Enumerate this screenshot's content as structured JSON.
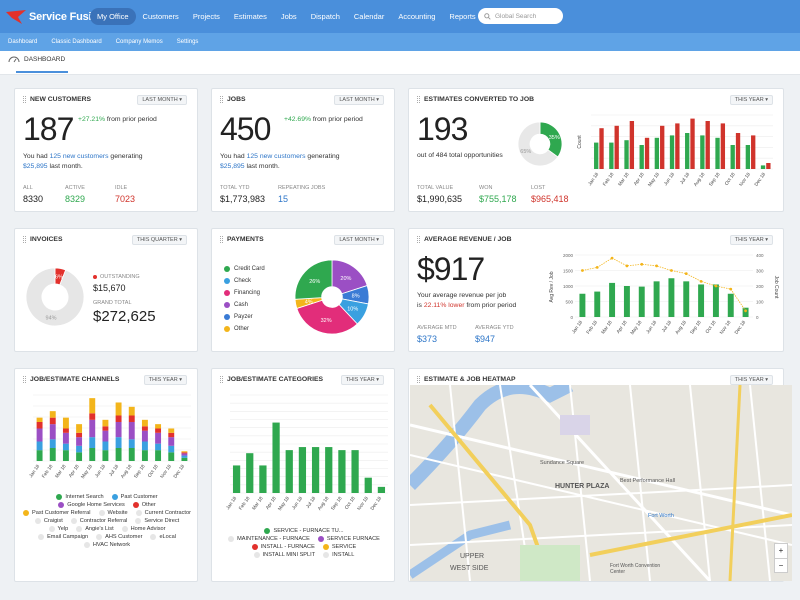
{
  "brand": {
    "name": "Service Fusion"
  },
  "nav": {
    "items": [
      "My Office",
      "Customers",
      "Projects",
      "Estimates",
      "Jobs",
      "Dispatch",
      "Calendar",
      "Accounting",
      "Reports"
    ],
    "active": "My Office"
  },
  "search": {
    "placeholder": "Global Search"
  },
  "subnav": {
    "items": [
      "Dashboard",
      "Classic Dashboard",
      "Company Memos",
      "Settings"
    ]
  },
  "breadcrumb": {
    "label": "DASHBOARD"
  },
  "new_customers": {
    "title": "NEW CUSTOMERS",
    "period": "LAST MONTH",
    "value": "187",
    "change": "+27.21%",
    "change_suffix": "from prior period",
    "line1_a": "You had ",
    "line1_b": "125 new customers",
    "line1_c": " generating",
    "line2_a": "$25,895",
    "line2_b": " last month.",
    "all_label": "ALL",
    "all_value": "8330",
    "active_label": "ACTIVE",
    "active_value": "8329",
    "idle_label": "IDLE",
    "idle_value": "7023"
  },
  "jobs": {
    "title": "JOBS",
    "period": "LAST MONTH",
    "value": "450",
    "change": "+42.69%",
    "change_suffix": "from prior period",
    "line1_a": "You had ",
    "line1_b": "125 new customers",
    "line1_c": " generating",
    "line2_a": "$25,895",
    "line2_b": " last month.",
    "ytd_label": "TOTAL YTD",
    "ytd_value": "$1,773,983",
    "rep_label": "REPEATING JOBS",
    "rep_value": "15"
  },
  "estimates": {
    "title": "ESTIMATES CONVERTED TO JOB",
    "period": "THIS YEAR",
    "value": "193",
    "sub": "out of 484 total opportunities",
    "total_label": "TOTAL VALUE",
    "total_value": "$1,990,635",
    "won_label": "WON",
    "won_value": "$755,178",
    "lost_label": "LOST",
    "lost_value": "$965,418",
    "pie_won": "35%",
    "pie_rest": "65%",
    "y_label": "Count"
  },
  "invoices": {
    "title": "INVOICES",
    "period": "THIS QUARTER",
    "pie_out": "6%",
    "pie_rest": "94%",
    "out_label": "OUTSTANDING",
    "out_value": "$15,670",
    "grand_label": "GRAND TOTAL",
    "grand_value": "$272,625"
  },
  "payments": {
    "title": "PAYMENTS",
    "period": "LAST MONTH",
    "legend": [
      {
        "label": "Credit Card",
        "color": "#2fa84f"
      },
      {
        "label": "Check",
        "color": "#3aa0e0"
      },
      {
        "label": "Financing",
        "color": "#e22d7a"
      },
      {
        "label": "Cash",
        "color": "#9b4fc4"
      },
      {
        "label": "Payzer",
        "color": "#3a7bd5"
      },
      {
        "label": "Other",
        "color": "#f3b51b"
      }
    ]
  },
  "avg_revenue": {
    "title": "AVERAGE REVENUE / JOB",
    "period": "THIS YEAR",
    "value": "$917",
    "line1": "Your average revenue per job",
    "line2_a": "is ",
    "line2_b": "22.11% lower",
    "line2_c": " from prior period",
    "mtd_label": "AVERAGE MTD",
    "mtd_value": "$373",
    "ytd_label": "AVERAGE YTD",
    "ytd_value": "$947",
    "y_left": "Avg Rev / Job",
    "y_right": "Job Count"
  },
  "channels": {
    "title": "JOB/ESTIMATE CHANNELS",
    "period": "THIS YEAR",
    "legend": [
      {
        "label": "Internet Search",
        "color": "#2fa84f"
      },
      {
        "label": "Past Customer",
        "color": "#3aa0e0"
      },
      {
        "label": "Google Home Services",
        "color": "#9b4fc4"
      },
      {
        "label": "Other",
        "color": "#e2312c"
      },
      {
        "label": "Past Customer Referral",
        "color": "#f3b51b"
      },
      {
        "label": "Website",
        "color": "#e6e6e6"
      },
      {
        "label": "Current Contractor",
        "color": "#e6e6e6"
      },
      {
        "label": "Craigist",
        "color": "#e6e6e6"
      },
      {
        "label": "Contractor Referral",
        "color": "#e6e6e6"
      },
      {
        "label": "Service Direct",
        "color": "#e6e6e6"
      },
      {
        "label": "Yelp",
        "color": "#e6e6e6"
      },
      {
        "label": "Angie's List",
        "color": "#e6e6e6"
      },
      {
        "label": "Home Advisor",
        "color": "#e6e6e6"
      },
      {
        "label": "Email Campaign",
        "color": "#e6e6e6"
      },
      {
        "label": "AHS Customer",
        "color": "#e6e6e6"
      },
      {
        "label": "eLocal",
        "color": "#e6e6e6"
      },
      {
        "label": "HVAC Network",
        "color": "#e6e6e6"
      }
    ]
  },
  "categories": {
    "title": "JOB/ESTIMATE CATEGORIES",
    "period": "THIS YEAR",
    "legend": [
      {
        "label": "SERVICE - FURNACE TU...",
        "color": "#2fa84f"
      },
      {
        "label": "MAINTENANCE - FURNACE",
        "color": "#e6e6e6"
      },
      {
        "label": "SERVICE FURNACE",
        "color": "#9b4fc4"
      },
      {
        "label": "INSTALL - FURNACE",
        "color": "#e2312c"
      },
      {
        "label": "SERVICE",
        "color": "#f3b51b"
      },
      {
        "label": "INSTALL MINI SPLIT",
        "color": "#e6e6e6"
      },
      {
        "label": "INSTALL",
        "color": "#e6e6e6"
      }
    ]
  },
  "heatmap": {
    "title": "ESTIMATE & JOB HEATMAP",
    "period": "THIS YEAR",
    "places": [
      "HUNTER PLAZA",
      "UPPER",
      "WEST SIDE",
      "Sundance Square",
      "Fort Worth",
      "Best Performance Hall",
      "Fort Worth Convention Center"
    ],
    "zoom_in": "+",
    "zoom_out": "−"
  },
  "chart_data": [
    {
      "type": "bar",
      "title": "",
      "ylabel": "Count",
      "categories": [
        "Jan 18",
        "Feb 18",
        "Mar 18",
        "Apr 18",
        "May 18",
        "Jun 18",
        "Jul 18",
        "Aug 18",
        "Sep 18",
        "Oct 18",
        "Nov 18",
        "Dec 18"
      ],
      "series": [
        {
          "color": "#2fa84f",
          "values": [
            22,
            22,
            24,
            20,
            26,
            28,
            30,
            28,
            26,
            20,
            20,
            3
          ]
        },
        {
          "color": "#d0342c",
          "values": [
            34,
            36,
            40,
            26,
            36,
            38,
            42,
            40,
            38,
            30,
            28,
            5
          ]
        }
      ],
      "ylim": [
        0,
        45
      ]
    },
    {
      "type": "pie",
      "title": "",
      "slices": [
        {
          "label": "35%",
          "value": 35,
          "color": "#2fa84f"
        },
        {
          "label": "65%",
          "value": 65,
          "color": "#e8e8e8"
        }
      ]
    },
    {
      "type": "pie",
      "title": "",
      "slices": [
        {
          "label": "6%",
          "value": 6,
          "color": "#e2312c"
        },
        {
          "label": "94%",
          "value": 94,
          "color": "#e6e6e6"
        }
      ]
    },
    {
      "type": "pie",
      "title": "",
      "slices": [
        {
          "label": "20%",
          "value": 20,
          "color": "#9b4fc4"
        },
        {
          "label": "8%",
          "value": 8,
          "color": "#3a7bd5"
        },
        {
          "label": "10%",
          "value": 10,
          "color": "#3aa0e0"
        },
        {
          "label": "32%",
          "value": 32,
          "color": "#e22d7a"
        },
        {
          "label": "4%",
          "value": 4,
          "color": "#f3b51b"
        },
        {
          "label": "26%",
          "value": 26,
          "color": "#2fa84f"
        }
      ]
    },
    {
      "type": "bar",
      "title": "",
      "ylabel": "Avg Rev / Job",
      "y2label": "Job Count",
      "categories": [
        "Jan 18",
        "Feb 18",
        "Mar 18",
        "Apr 18",
        "May 18",
        "Jun 18",
        "Jul 18",
        "Aug 18",
        "Sep 18",
        "Oct 18",
        "Nov 18",
        "Dec 18"
      ],
      "series": [
        {
          "color": "#2fa84f",
          "values": [
            750,
            820,
            1100,
            1000,
            980,
            1150,
            1250,
            1150,
            1050,
            1050,
            750,
            300
          ]
        },
        {
          "color": "#f3b51b",
          "type": "line",
          "axis": "right",
          "values": [
            300,
            320,
            380,
            330,
            340,
            330,
            300,
            280,
            230,
            200,
            180,
            40
          ]
        }
      ],
      "ylim": [
        0,
        2000
      ],
      "y2lim": [
        0,
        400
      ]
    },
    {
      "type": "bar",
      "title": "",
      "stacked": true,
      "categories": [
        "Jan 18",
        "Feb 18",
        "Mar 18",
        "Apr 18",
        "May 18",
        "Jun 18",
        "Jul 18",
        "Aug 18",
        "Sep 18",
        "Oct 18",
        "Nov 18",
        "Dec 18"
      ],
      "series": [
        {
          "name": "Internet Search",
          "color": "#2fa84f",
          "values": [
            10,
            12,
            10,
            8,
            12,
            10,
            12,
            12,
            10,
            10,
            8,
            3
          ]
        },
        {
          "name": "Past Customer",
          "color": "#3aa0e0",
          "values": [
            8,
            8,
            6,
            6,
            10,
            8,
            10,
            8,
            8,
            6,
            6,
            2
          ]
        },
        {
          "name": "Google Home Services",
          "color": "#9b4fc4",
          "values": [
            12,
            14,
            10,
            8,
            16,
            10,
            14,
            16,
            10,
            10,
            8,
            2
          ]
        },
        {
          "name": "Other",
          "color": "#e2312c",
          "values": [
            6,
            6,
            4,
            4,
            6,
            4,
            6,
            6,
            4,
            4,
            4,
            1
          ]
        },
        {
          "name": "Past Customer Referral",
          "color": "#f3b51b",
          "values": [
            4,
            6,
            10,
            8,
            14,
            6,
            12,
            8,
            6,
            4,
            4,
            1
          ]
        }
      ]
    },
    {
      "type": "bar",
      "title": "",
      "categories": [
        "Jan 18",
        "Feb 18",
        "Mar 18",
        "Apr 18",
        "May 18",
        "Jun 18",
        "Jul 18",
        "Aug 18",
        "Sep 18",
        "Oct 18",
        "Nov 18",
        "Dec 18"
      ],
      "series": [
        {
          "name": "SERVICE - FURNACE TU...",
          "color": "#2fa84f",
          "values": [
            9,
            13,
            9,
            23,
            14,
            15,
            15,
            15,
            14,
            14,
            5,
            2
          ]
        }
      ],
      "ylim": [
        0,
        32
      ]
    }
  ]
}
